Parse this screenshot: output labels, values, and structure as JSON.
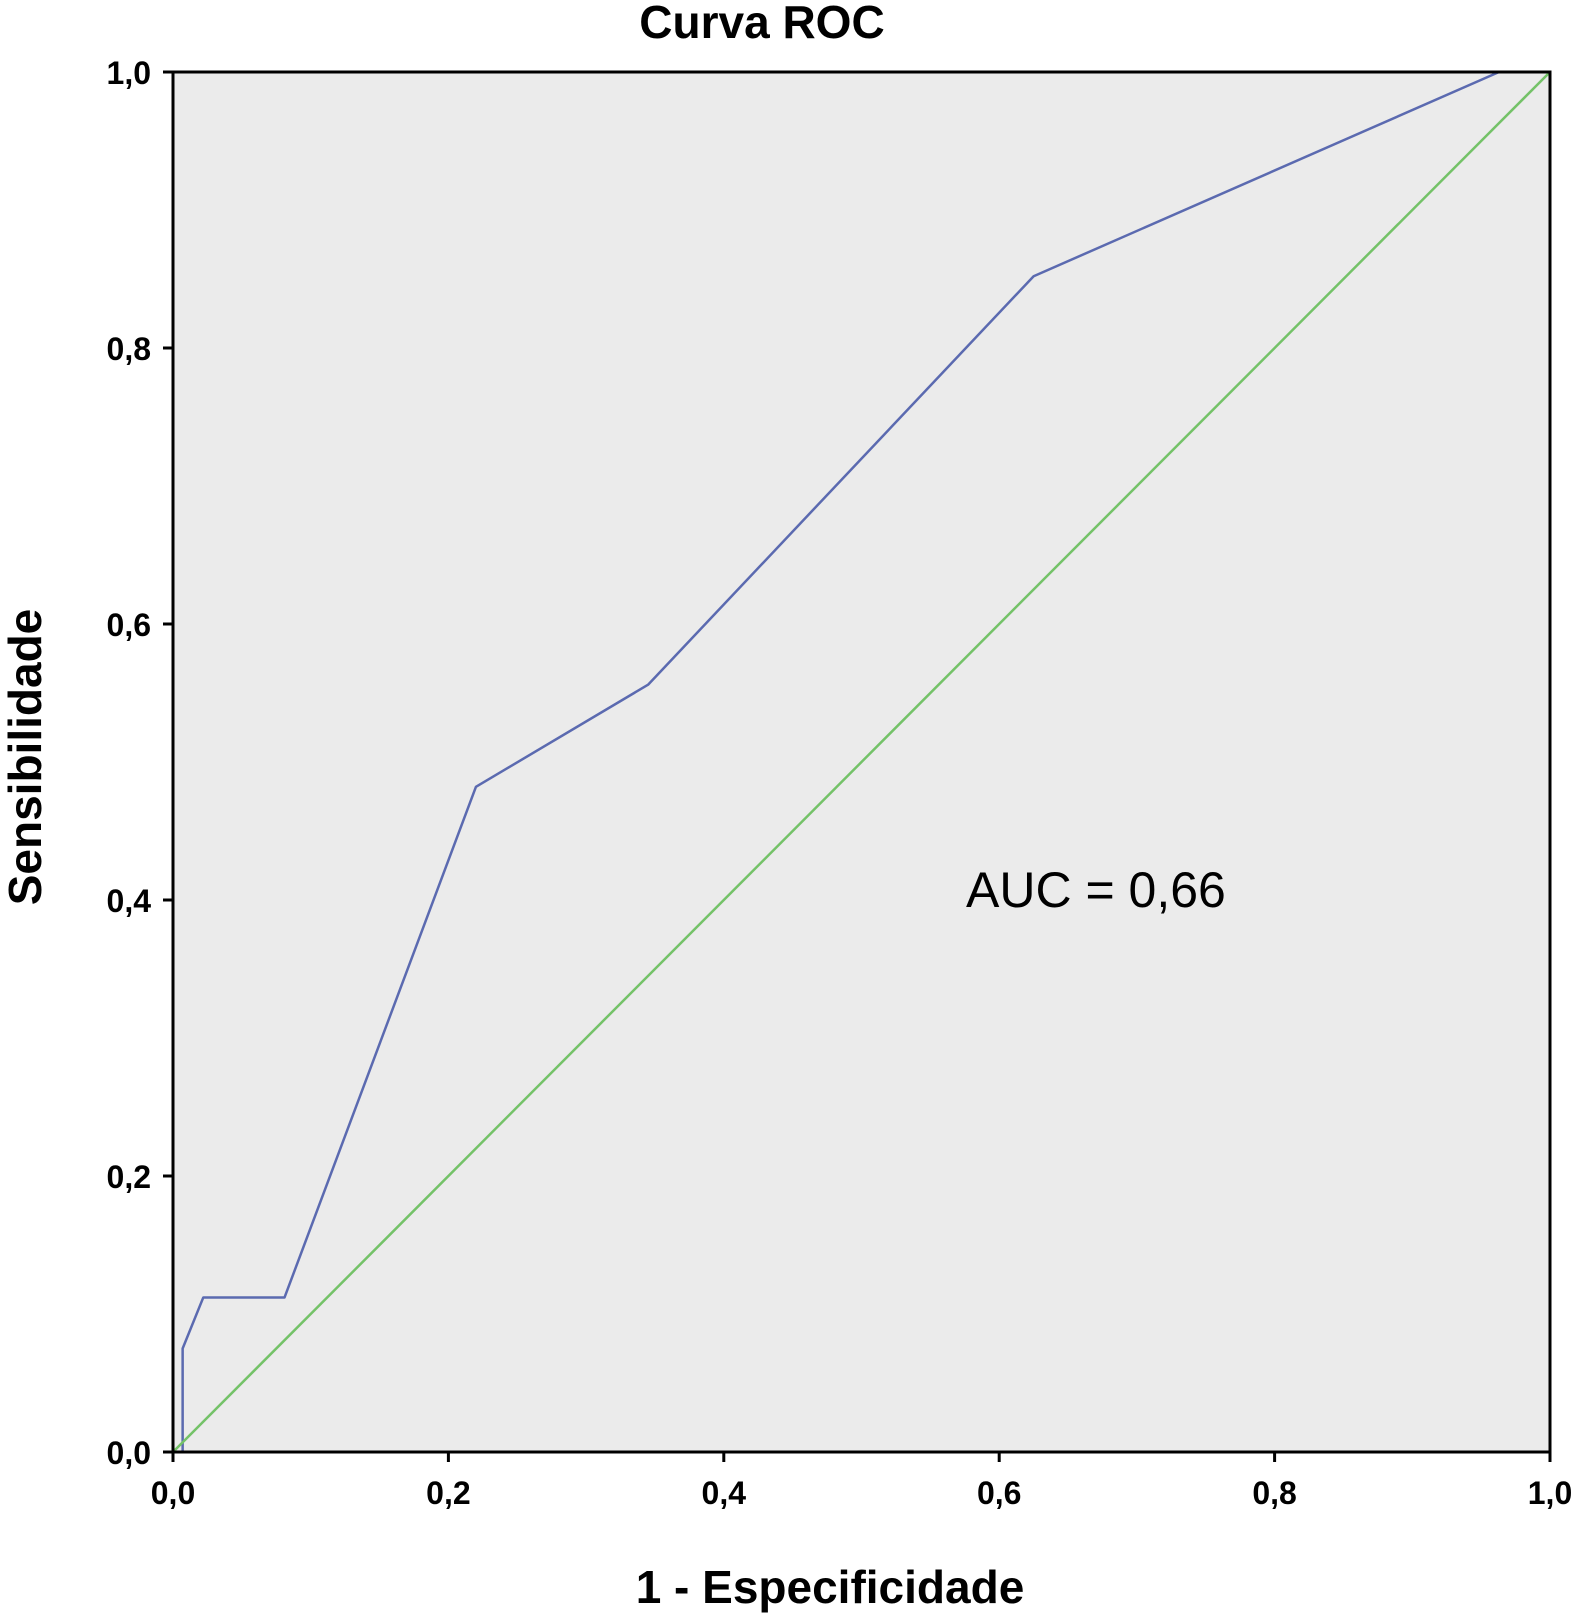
{
  "chart_data": {
    "type": "line",
    "title": "Curva ROC",
    "xlabel": "1 - Especificidade",
    "ylabel": "Sensibilidade",
    "xlim": [
      0,
      1
    ],
    "ylim": [
      0,
      1
    ],
    "xticks": [
      "0,0",
      "0,2",
      "0,4",
      "0,6",
      "0,8",
      "1,0"
    ],
    "yticks": [
      "0,0",
      "0,2",
      "0,4",
      "0,6",
      "0,8",
      "1,0"
    ],
    "grid": false,
    "annotation": "AUC = 0,66",
    "background_color": "#ebebeb",
    "series": [
      {
        "color": "#5b6ab0",
        "x": [
          0,
          0.007,
          0.007,
          0.022,
          0.081,
          0.22,
          0.345,
          0.625,
          0.963,
          1.0
        ],
        "y": [
          0,
          0,
          0.075,
          0.112,
          0.112,
          0.482,
          0.556,
          0.852,
          1.0,
          1.0
        ]
      },
      {
        "color": "#74c268",
        "x": [
          0,
          1
        ],
        "y": [
          0,
          1
        ]
      }
    ]
  }
}
